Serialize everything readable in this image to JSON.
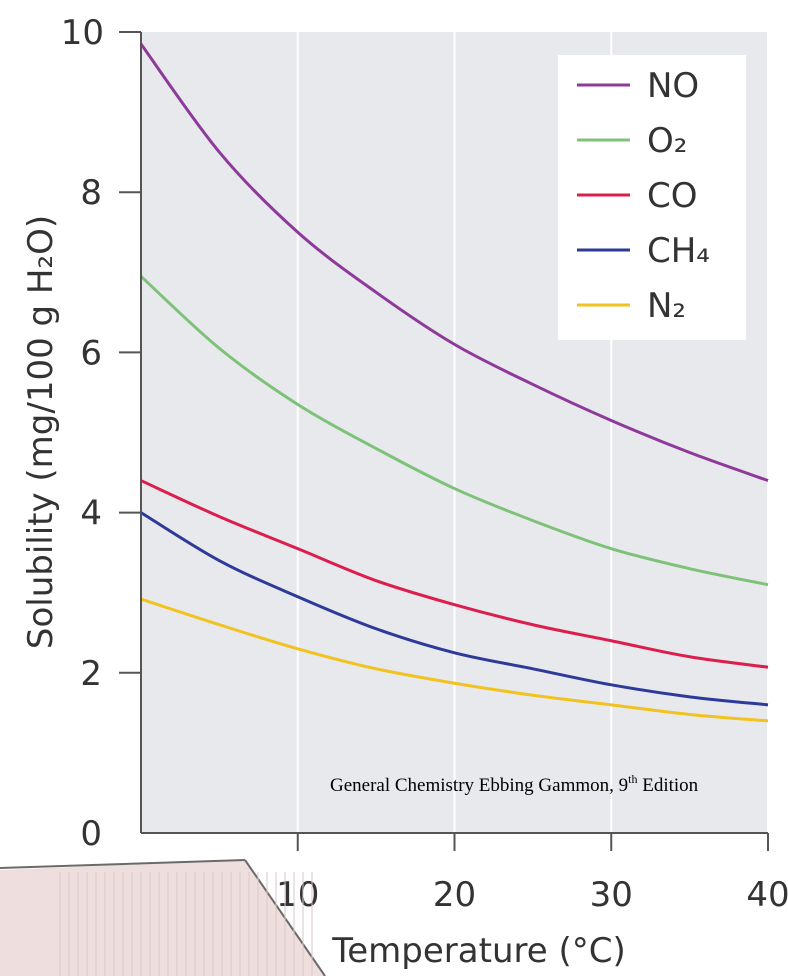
{
  "chart_data": {
    "type": "line",
    "title": "",
    "xlabel": "Temperature (°C)",
    "ylabel": "Solubility (mg/100 g H₂O)",
    "xlim": [
      0,
      40
    ],
    "ylim": [
      0,
      10
    ],
    "x_ticks": [
      10,
      20,
      30,
      40
    ],
    "y_ticks": [
      0,
      2,
      4,
      6,
      8,
      10
    ],
    "grid": true,
    "legend_position": "top-right",
    "x": [
      0,
      5,
      10,
      15,
      20,
      25,
      30,
      35,
      40
    ],
    "series": [
      {
        "name": "NO",
        "color": "#8e3a9a",
        "values": [
          9.85,
          8.5,
          7.5,
          6.75,
          6.1,
          5.6,
          5.15,
          4.75,
          4.4
        ]
      },
      {
        "name": "O₂",
        "color": "#7ec27a",
        "values": [
          6.95,
          6.05,
          5.35,
          4.8,
          4.3,
          3.9,
          3.55,
          3.3,
          3.1
        ]
      },
      {
        "name": "CO",
        "color": "#dc1e4e",
        "values": [
          4.4,
          3.95,
          3.55,
          3.15,
          2.85,
          2.6,
          2.4,
          2.2,
          2.07
        ]
      },
      {
        "name": "CH₄",
        "color": "#2e3a9a",
        "values": [
          4.0,
          3.4,
          2.95,
          2.55,
          2.25,
          2.05,
          1.85,
          1.7,
          1.6
        ]
      },
      {
        "name": "N₂",
        "color": "#f2c21e",
        "values": [
          2.92,
          2.6,
          2.3,
          2.05,
          1.87,
          1.72,
          1.6,
          1.48,
          1.4
        ]
      }
    ]
  },
  "credit": {
    "main": "General Chemistry Ebbing Gammon, 9",
    "sup": "th",
    "tail": " Edition"
  }
}
